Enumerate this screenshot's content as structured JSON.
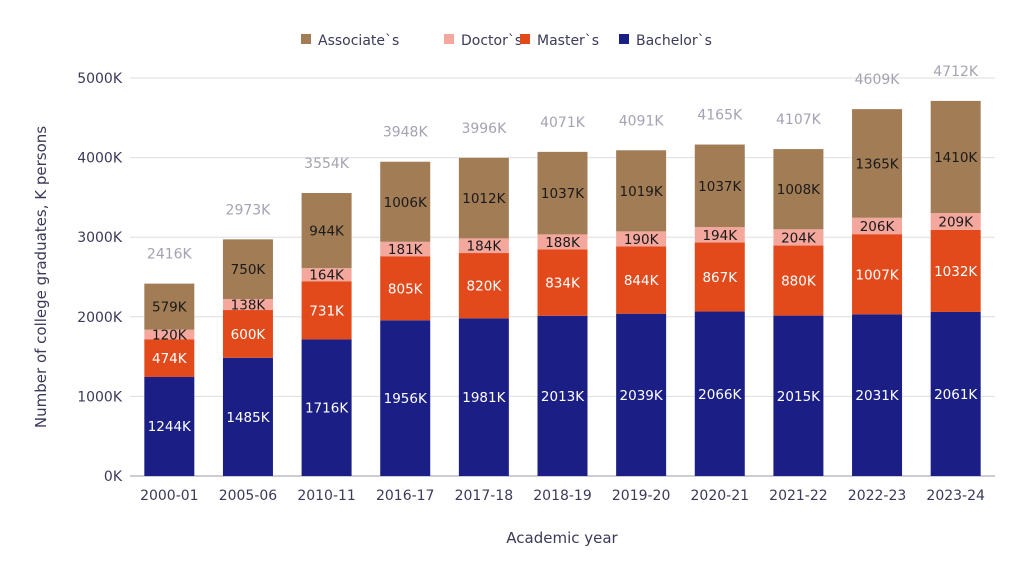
{
  "chart_data": {
    "type": "bar",
    "stacked": true,
    "title": "",
    "xlabel": "Academic year",
    "ylabel": "Number of college graduates, K persons",
    "ylim": [
      0,
      5000
    ],
    "yticks": [
      "0K",
      "1000K",
      "2000K",
      "3000K",
      "4000K",
      "5000K"
    ],
    "ytick_values": [
      0,
      1000,
      2000,
      3000,
      4000,
      5000
    ],
    "grid": true,
    "legend_position": "top",
    "categories": [
      "2000-01",
      "2005-06",
      "2010-11",
      "2016-17",
      "2017-18",
      "2018-19",
      "2019-20",
      "2020-21",
      "2021-22",
      "2022-23",
      "2023-24"
    ],
    "series": [
      {
        "name": "Bachelor`s",
        "color": "#1b1f85",
        "label_color": "#ffffff",
        "values": [
          1244,
          1485,
          1716,
          1956,
          1981,
          2013,
          2039,
          2066,
          2015,
          2031,
          2061
        ]
      },
      {
        "name": "Master`s",
        "color": "#e24a1b",
        "label_color": "#ffffff",
        "values": [
          474,
          600,
          731,
          805,
          820,
          834,
          844,
          867,
          880,
          1007,
          1032
        ]
      },
      {
        "name": "Doctor`s",
        "color": "#f4a79c",
        "label_color": "#1a1a1a",
        "values": [
          120,
          138,
          164,
          181,
          184,
          188,
          190,
          194,
          204,
          206,
          209
        ]
      },
      {
        "name": "Associate`s",
        "color": "#a27c55",
        "label_color": "#1a1a1a",
        "values": [
          579,
          750,
          944,
          1006,
          1012,
          1037,
          1019,
          1037,
          1008,
          1365,
          1410
        ]
      }
    ],
    "totals": [
      2416,
      2973,
      3554,
      3948,
      3996,
      4071,
      4091,
      4165,
      4107,
      4609,
      4712
    ],
    "legend_order": [
      "Associate`s",
      "Doctor`s",
      "Master`s",
      "Bachelor`s"
    ],
    "value_suffix": "K"
  }
}
